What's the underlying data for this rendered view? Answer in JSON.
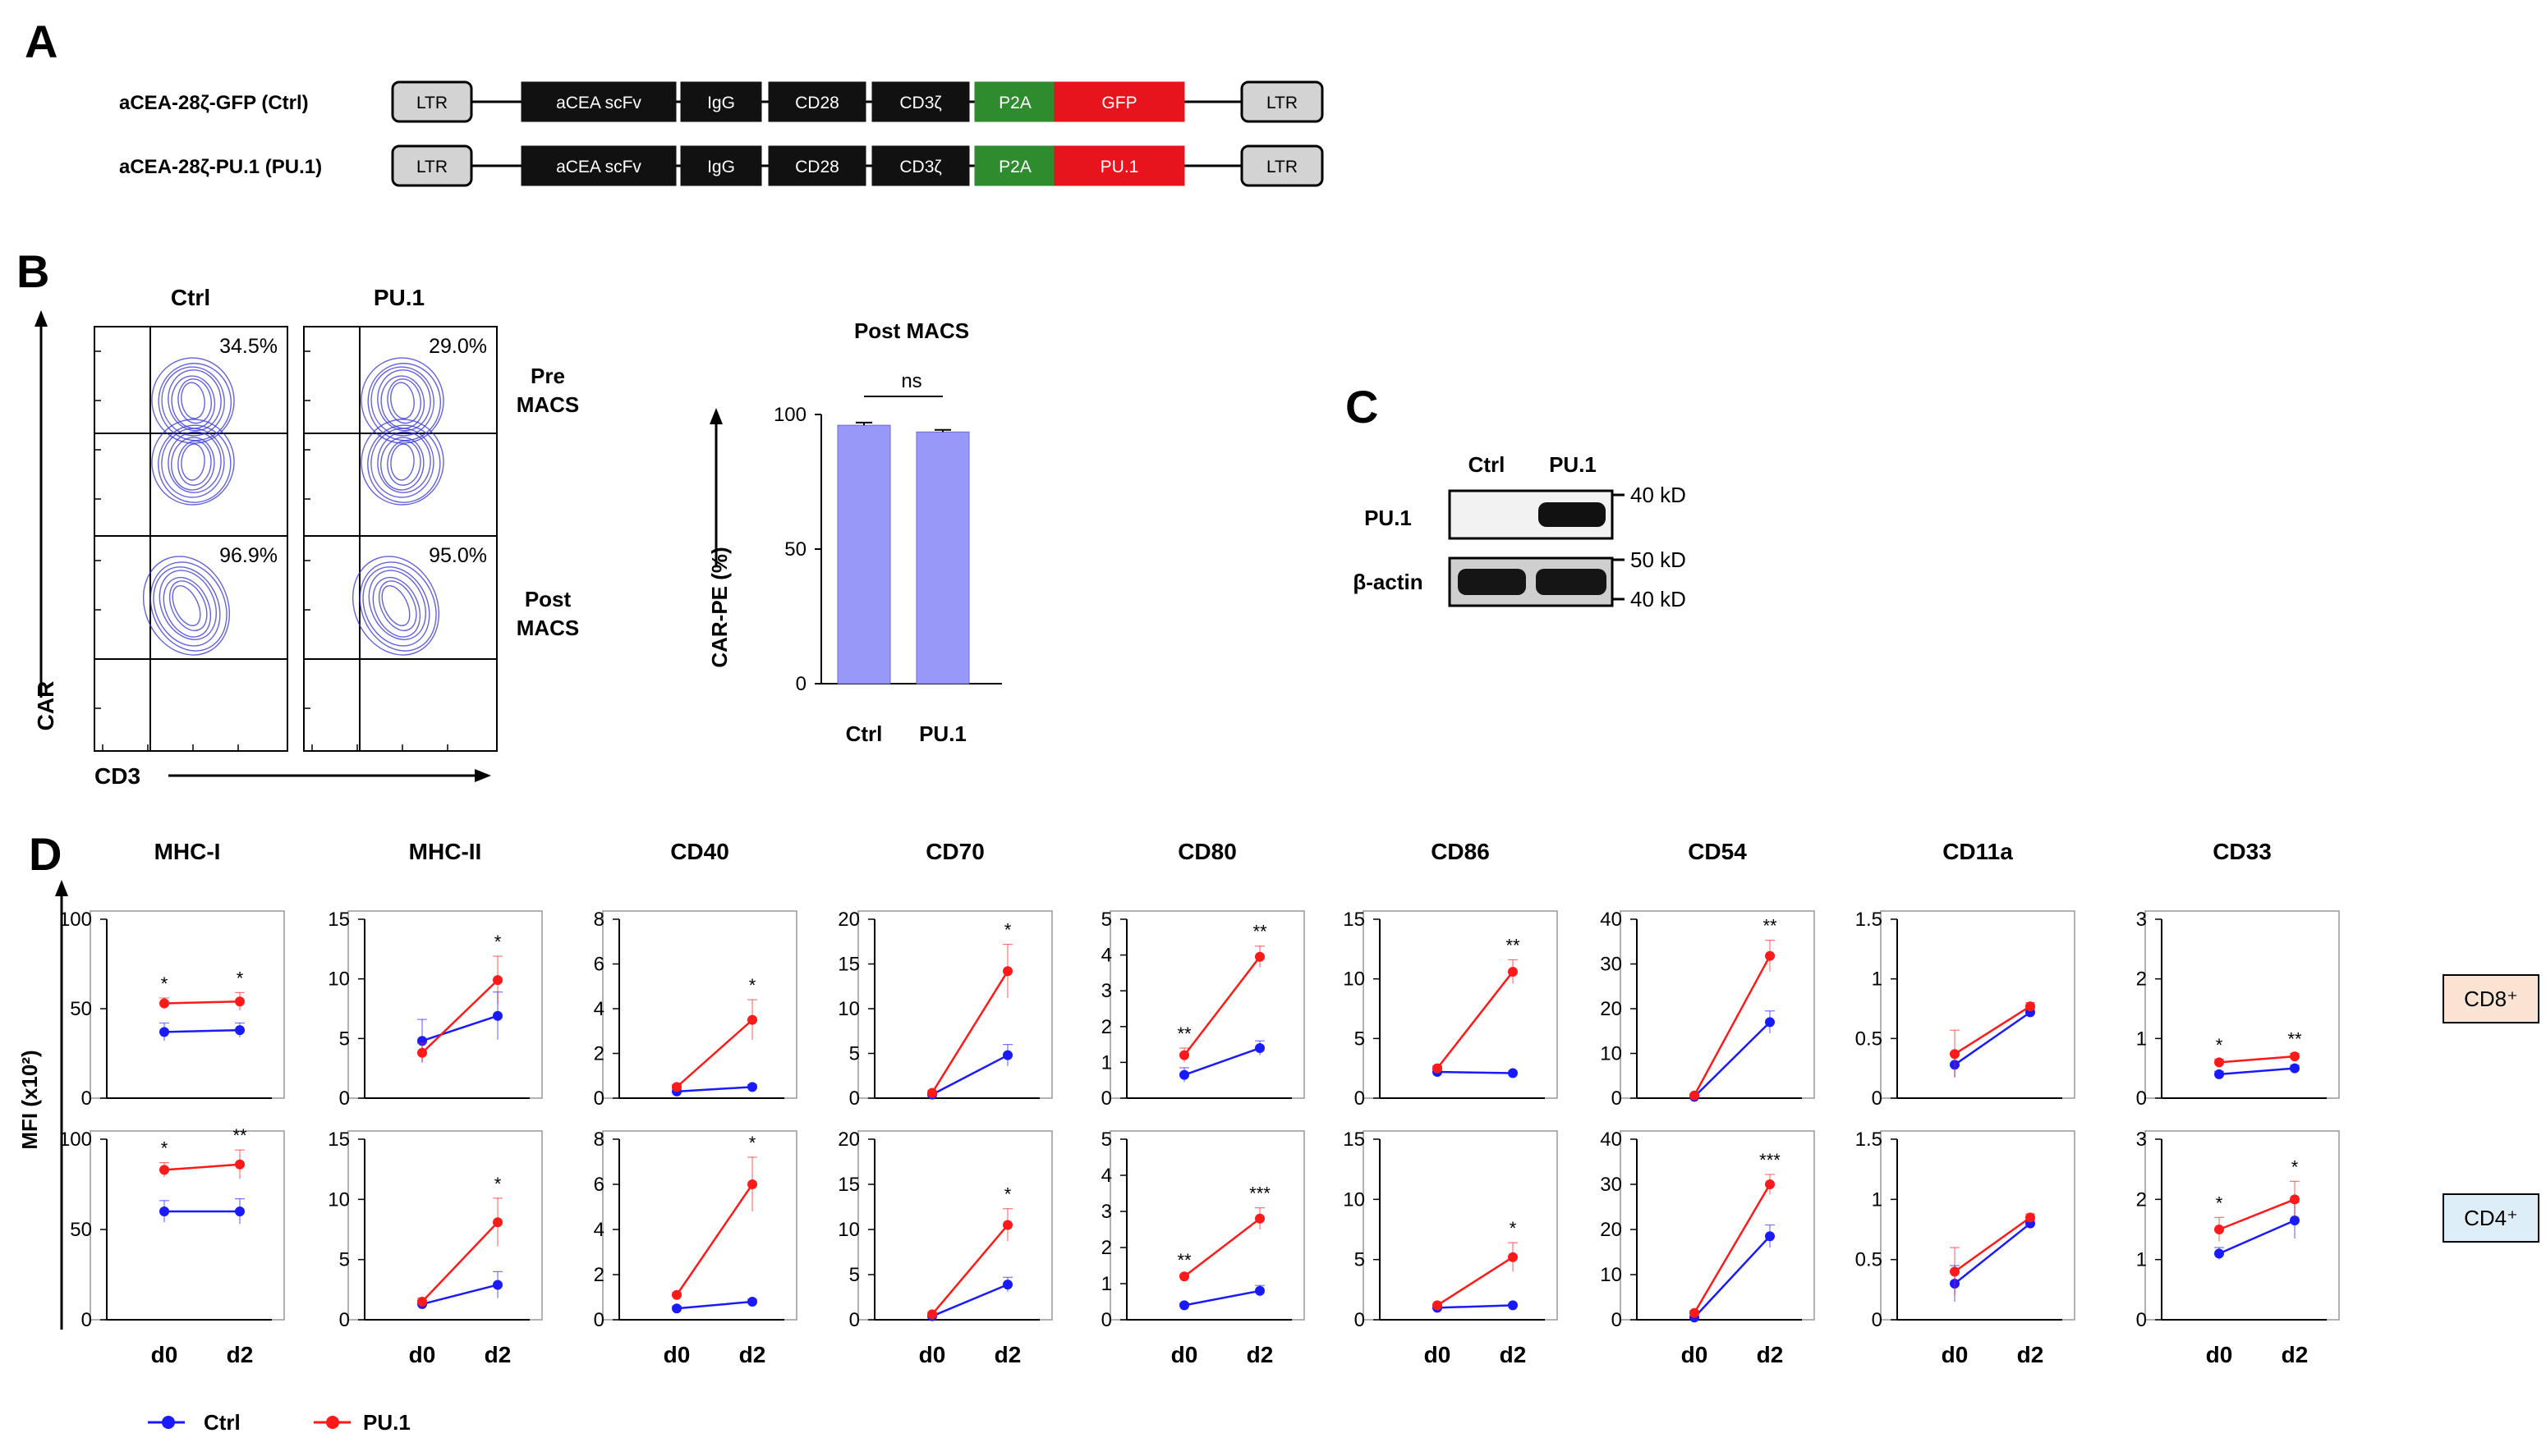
{
  "panel_labels": {
    "A": "A",
    "B": "B",
    "C": "C",
    "D": "D"
  },
  "panel_a": {
    "constructs": [
      {
        "name": "aCEA-28ζ-GFP (Ctrl)",
        "segments": [
          {
            "label": "LTR",
            "color": "#d3d3d3"
          },
          {
            "label": "aCEA scFv",
            "color": "#111111"
          },
          {
            "label": "IgG",
            "color": "#111111"
          },
          {
            "label": "CD28",
            "color": "#111111"
          },
          {
            "label": "CD3ζ",
            "color": "#111111"
          },
          {
            "label": "P2A",
            "color": "#2e8b2e"
          },
          {
            "label": "GFP",
            "color": "#e8141d"
          },
          {
            "label": "LTR",
            "color": "#d3d3d3"
          }
        ]
      },
      {
        "name": "aCEA-28ζ-PU.1 (PU.1)",
        "segments": [
          {
            "label": "LTR",
            "color": "#d3d3d3"
          },
          {
            "label": "aCEA scFv",
            "color": "#111111"
          },
          {
            "label": "IgG",
            "color": "#111111"
          },
          {
            "label": "CD28",
            "color": "#111111"
          },
          {
            "label": "CD3ζ",
            "color": "#111111"
          },
          {
            "label": "P2A",
            "color": "#2e8b2e"
          },
          {
            "label": "PU.1",
            "color": "#e8141d"
          },
          {
            "label": "LTR",
            "color": "#d3d3d3"
          }
        ]
      }
    ]
  },
  "panel_b": {
    "col_headers": [
      "Ctrl",
      "PU.1"
    ],
    "row_headers": [
      [
        "Pre",
        "MACS"
      ],
      [
        "Post",
        "MACS"
      ]
    ],
    "percents": [
      [
        "34.5%",
        "29.0%"
      ],
      [
        "96.9%",
        "95.0%"
      ]
    ],
    "y_axis": "CAR",
    "x_axis": "CD3",
    "bar_title": "Post MACS",
    "bar_ylabel": "CAR-PE (%)",
    "significance": "ns",
    "contour_color": "#3b3bd6"
  },
  "panel_c": {
    "lanes": [
      "Ctrl",
      "PU.1"
    ],
    "rows": [
      "PU.1",
      "β-actin"
    ],
    "markers": [
      "40 kD",
      "50 kD",
      "40 kD"
    ]
  },
  "panel_d": {
    "y_axis": "MFI (x10²)",
    "x_ticks": [
      "d0",
      "d2"
    ],
    "row_tags": [
      "CD8⁺",
      "CD4⁺"
    ],
    "tag_colors": [
      "#fbe3d4",
      "#ddeef8"
    ],
    "legend": [
      {
        "name": "Ctrl",
        "color": "#1a1aff"
      },
      {
        "name": "PU.1",
        "color": "#ff1a1a"
      }
    ]
  },
  "chart_data": [
    {
      "type": "bar",
      "title": "Post MACS",
      "categories": [
        "Ctrl",
        "PU.1"
      ],
      "values": [
        96,
        93.5
      ],
      "errors": [
        1,
        0.8
      ],
      "ylabel": "CAR-PE (%)",
      "ylim": [
        0,
        100
      ],
      "yticks": [
        0,
        50,
        100
      ],
      "annotation": "ns",
      "color": "#9898f8"
    },
    {
      "type": "line",
      "panel": "D",
      "charts": [
        {
          "title": "MHC-I",
          "ylim": [
            0,
            100
          ],
          "yticks": [
            0,
            50,
            100
          ],
          "rows": [
            {
              "ctrl": [
                37,
                38
              ],
              "ctrl_err": [
                5,
                4
              ],
              "pu1": [
                53,
                54
              ],
              "pu1_err": [
                3,
                5
              ],
              "stars": [
                "*",
                "*"
              ]
            },
            {
              "ctrl": [
                60,
                60
              ],
              "ctrl_err": [
                6,
                7
              ],
              "pu1": [
                83,
                86
              ],
              "pu1_err": [
                4,
                8
              ],
              "stars": [
                "*",
                "**"
              ]
            }
          ]
        },
        {
          "title": "MHC-II",
          "ylim": [
            0,
            15
          ],
          "yticks": [
            0,
            5,
            10,
            15
          ],
          "rows": [
            {
              "ctrl": [
                4.8,
                6.9
              ],
              "ctrl_err": [
                1.8,
                2
              ],
              "pu1": [
                3.8,
                9.9
              ],
              "pu1_err": [
                0.8,
                2
              ],
              "stars": [
                "",
                "*"
              ]
            },
            {
              "ctrl": [
                1.3,
                2.9
              ],
              "ctrl_err": [
                0.3,
                1.1
              ],
              "pu1": [
                1.5,
                8.1
              ],
              "pu1_err": [
                0.3,
                2
              ],
              "stars": [
                "",
                "*"
              ]
            }
          ]
        },
        {
          "title": "CD40",
          "ylim": [
            0,
            8
          ],
          "yticks": [
            0,
            2,
            4,
            6,
            8
          ],
          "rows": [
            {
              "ctrl": [
                0.3,
                0.5
              ],
              "ctrl_err": [
                0.1,
                0.1
              ],
              "pu1": [
                0.5,
                3.5
              ],
              "pu1_err": [
                0.1,
                0.9
              ],
              "stars": [
                "",
                "*"
              ]
            },
            {
              "ctrl": [
                0.5,
                0.8
              ],
              "ctrl_err": [
                0.1,
                0.1
              ],
              "pu1": [
                1.1,
                6.0
              ],
              "pu1_err": [
                0.1,
                1.2
              ],
              "stars": [
                "",
                "*"
              ]
            }
          ]
        },
        {
          "title": "CD70",
          "ylim": [
            0,
            20
          ],
          "yticks": [
            0,
            5,
            10,
            15,
            20
          ],
          "rows": [
            {
              "ctrl": [
                0.4,
                4.8
              ],
              "ctrl_err": [
                0.2,
                1.2
              ],
              "pu1": [
                0.6,
                14.2
              ],
              "pu1_err": [
                0.2,
                3
              ],
              "stars": [
                "",
                "*"
              ]
            },
            {
              "ctrl": [
                0.4,
                3.9
              ],
              "ctrl_err": [
                0.2,
                0.8
              ],
              "pu1": [
                0.6,
                10.5
              ],
              "pu1_err": [
                0.2,
                1.8
              ],
              "stars": [
                "",
                "*"
              ]
            }
          ]
        },
        {
          "title": "CD80",
          "ylim": [
            0,
            5
          ],
          "yticks": [
            0,
            1,
            2,
            3,
            4,
            5
          ],
          "rows": [
            {
              "ctrl": [
                0.65,
                1.4
              ],
              "ctrl_err": [
                0.2,
                0.2
              ],
              "pu1": [
                1.2,
                3.95
              ],
              "pu1_err": [
                0.2,
                0.3
              ],
              "stars": [
                "**",
                "**"
              ]
            },
            {
              "ctrl": [
                0.4,
                0.8
              ],
              "ctrl_err": [
                0.05,
                0.15
              ],
              "pu1": [
                1.2,
                2.8
              ],
              "pu1_err": [
                0.05,
                0.3
              ],
              "stars": [
                "**",
                "***"
              ]
            }
          ]
        },
        {
          "title": "CD86",
          "ylim": [
            0,
            15
          ],
          "yticks": [
            0,
            5,
            10,
            15
          ],
          "rows": [
            {
              "ctrl": [
                2.2,
                2.1
              ],
              "ctrl_err": [
                0.2,
                0.1
              ],
              "pu1": [
                2.5,
                10.6
              ],
              "pu1_err": [
                0.2,
                1
              ],
              "stars": [
                "",
                "**"
              ]
            },
            {
              "ctrl": [
                1.0,
                1.2
              ],
              "ctrl_err": [
                0.1,
                0.1
              ],
              "pu1": [
                1.2,
                5.2
              ],
              "pu1_err": [
                0.1,
                1.2
              ],
              "stars": [
                "",
                "*"
              ]
            }
          ]
        },
        {
          "title": "CD54",
          "ylim": [
            0,
            40
          ],
          "yticks": [
            0,
            10,
            20,
            30,
            40
          ],
          "rows": [
            {
              "ctrl": [
                0.3,
                17
              ],
              "ctrl_err": [
                0.2,
                2.5
              ],
              "pu1": [
                0.6,
                31.8
              ],
              "pu1_err": [
                0.3,
                3.5
              ],
              "stars": [
                "",
                "**"
              ]
            },
            {
              "ctrl": [
                0.5,
                18.5
              ],
              "ctrl_err": [
                0.3,
                2.5
              ],
              "pu1": [
                1.5,
                30
              ],
              "pu1_err": [
                0.5,
                2.2
              ],
              "stars": [
                "",
                "***"
              ]
            }
          ]
        },
        {
          "title": "CD11a",
          "ylim": [
            0,
            1.5
          ],
          "yticks": [
            0,
            0.5,
            1,
            1.5
          ],
          "rows": [
            {
              "ctrl": [
                0.28,
                0.72
              ],
              "ctrl_err": [
                0.1,
                0.03
              ],
              "pu1": [
                0.37,
                0.77
              ],
              "pu1_err": [
                0.2,
                0.03
              ],
              "stars": [
                "",
                ""
              ]
            },
            {
              "ctrl": [
                0.3,
                0.8
              ],
              "ctrl_err": [
                0.15,
                0.03
              ],
              "pu1": [
                0.4,
                0.85
              ],
              "pu1_err": [
                0.2,
                0.03
              ],
              "stars": [
                "",
                ""
              ]
            }
          ]
        },
        {
          "title": "CD33",
          "ylim": [
            0,
            3
          ],
          "yticks": [
            0,
            1,
            2,
            3
          ],
          "rows": [
            {
              "ctrl": [
                0.4,
                0.5
              ],
              "ctrl_err": [
                0.05,
                0.05
              ],
              "pu1": [
                0.6,
                0.7
              ],
              "pu1_err": [
                0.05,
                0.05
              ],
              "stars": [
                "*",
                "**"
              ]
            },
            {
              "ctrl": [
                1.1,
                1.65
              ],
              "ctrl_err": [
                0.1,
                0.3
              ],
              "pu1": [
                1.5,
                2.0
              ],
              "pu1_err": [
                0.2,
                0.3
              ],
              "stars": [
                "*",
                "*"
              ]
            }
          ]
        }
      ]
    }
  ]
}
